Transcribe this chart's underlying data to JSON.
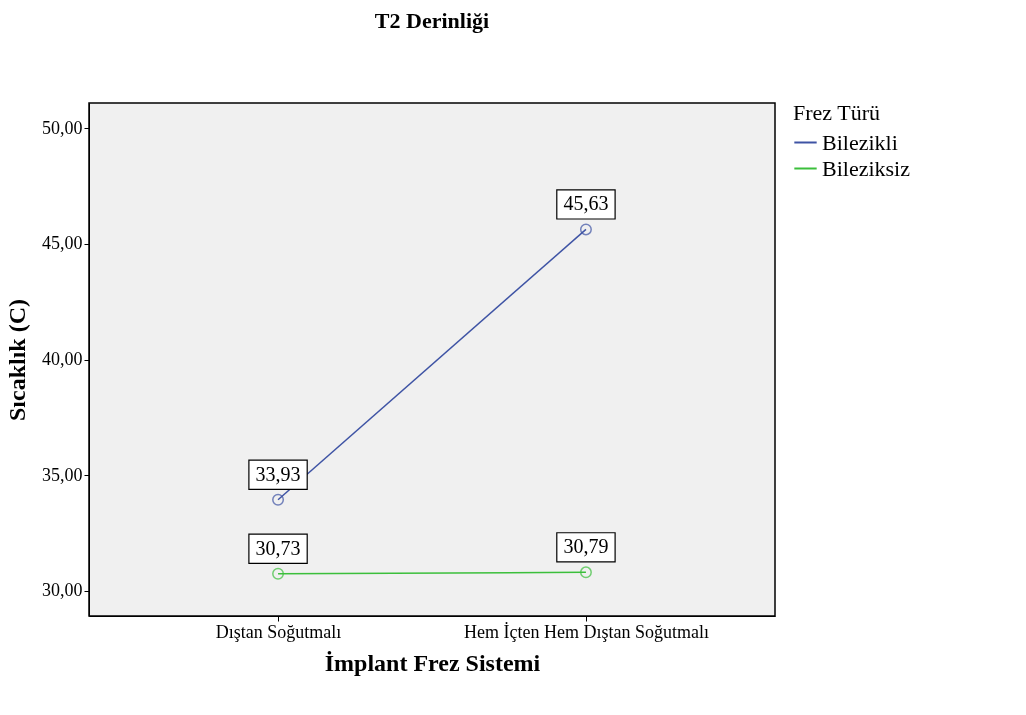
{
  "chart_data": {
    "type": "line",
    "title": "T2 Derinliği",
    "xlabel": "İmplant Frez Sistemi",
    "ylabel": "Sıcaklık (C)",
    "legend_title": "Frez Türü",
    "categories": [
      "Dıştan Soğutmalı",
      "Hem İçten Hem Dıştan Soğutmalı"
    ],
    "series": [
      {
        "name": "Bilezikli",
        "color": "#3e53a4",
        "values": [
          33.93,
          45.63
        ],
        "value_labels": [
          "33,93",
          "45,63"
        ]
      },
      {
        "name": "Bileziksiz",
        "color": "#3bbf3b",
        "values": [
          30.73,
          30.79
        ],
        "value_labels": [
          "30,73",
          "30,79"
        ]
      }
    ],
    "ylim": [
      28.9,
      51.1
    ],
    "yticks": [
      {
        "value": 30,
        "label": "30,00"
      },
      {
        "value": 35,
        "label": "35,00"
      },
      {
        "value": 40,
        "label": "40,00"
      },
      {
        "value": 45,
        "label": "45,00"
      },
      {
        "value": 50,
        "label": "50,00"
      }
    ],
    "marker": "circle",
    "line_style": "solid",
    "grid": false,
    "legend": "right"
  }
}
